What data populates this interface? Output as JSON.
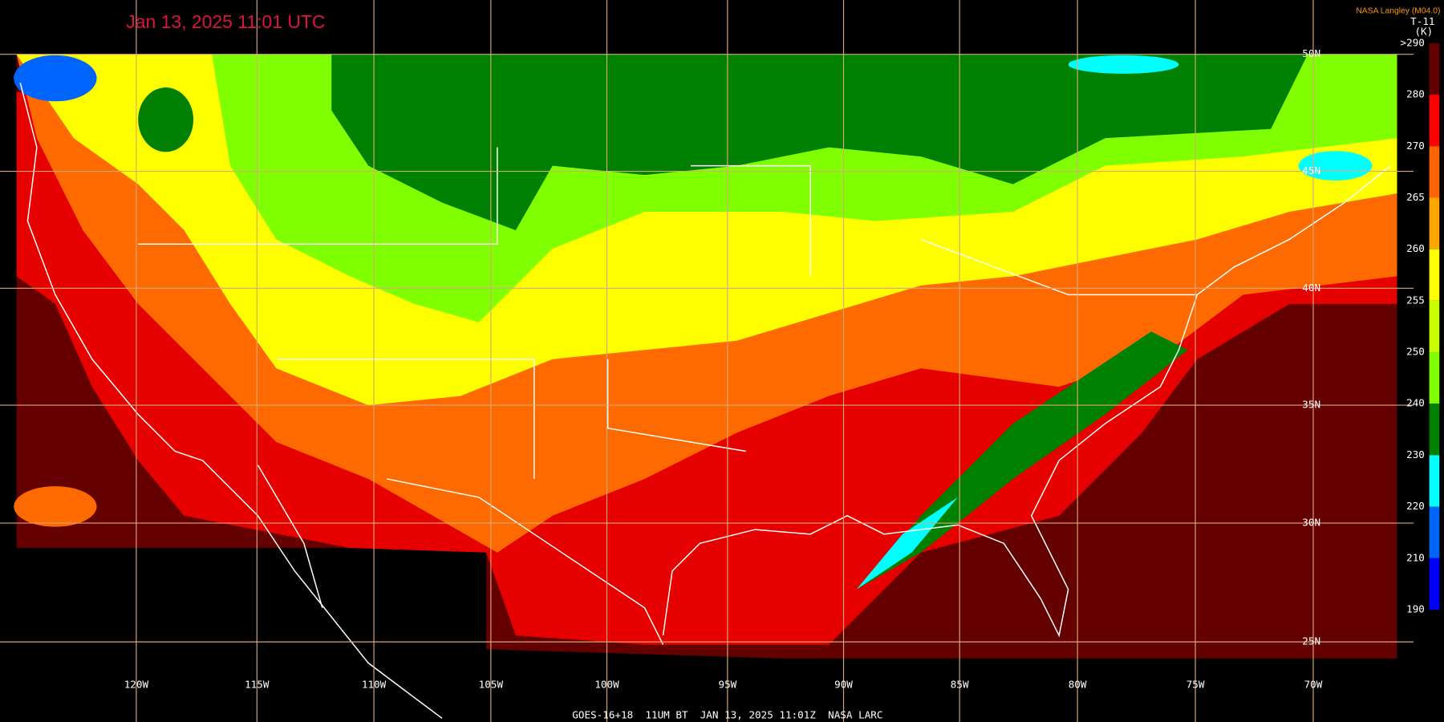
{
  "header": {
    "timestamp": "Jan 13, 2025 11:01 UTC",
    "credit": "NASA Langley (M04.0)"
  },
  "colorbar": {
    "title": "T-11",
    "unit": "(K)",
    "labels": [
      ">290",
      "280",
      "270",
      "265",
      "260",
      "255",
      "250",
      "240",
      "230",
      "220",
      "210",
      "190"
    ]
  },
  "grid": {
    "longitudes": [
      "120W",
      "115W",
      "110W",
      "105W",
      "100W",
      "95W",
      "90W",
      "85W",
      "80W",
      "75W",
      "70W"
    ],
    "latitudes": [
      "50N",
      "45N",
      "40N",
      "35N",
      "30N",
      "25N"
    ]
  },
  "footer": "GOES-16+18  11UM BT  JAN 13, 2025 11:01Z  NASA LARC"
}
